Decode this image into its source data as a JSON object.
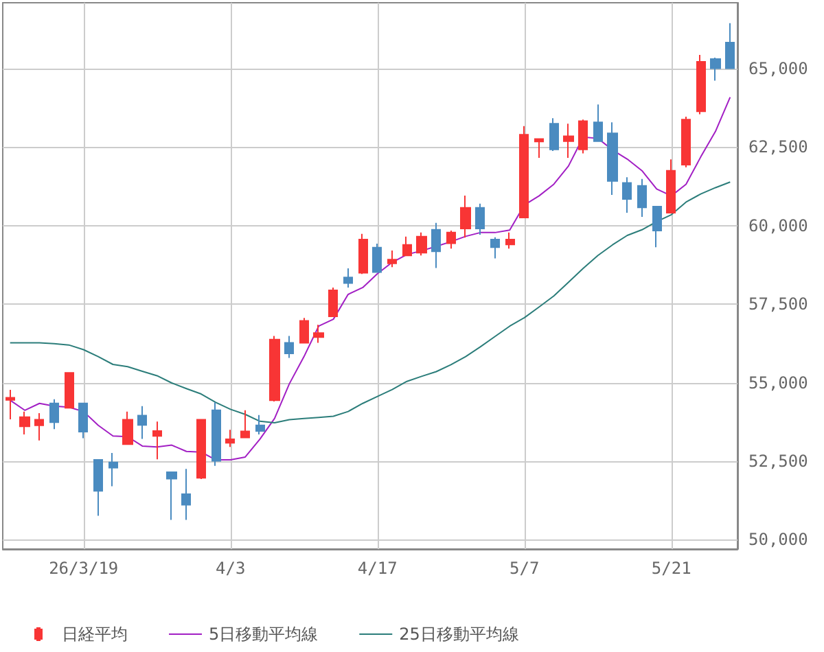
{
  "chart_data": {
    "type": "candlestick",
    "categories": [
      null,
      null,
      null,
      null,
      null,
      "26/3/19",
      null,
      null,
      null,
      null,
      null,
      null,
      null,
      null,
      null,
      "4/3",
      null,
      null,
      null,
      null,
      null,
      null,
      null,
      null,
      null,
      "4/17",
      null,
      null,
      null,
      null,
      null,
      null,
      null,
      null,
      null,
      "5/7",
      null,
      null,
      null,
      null,
      null,
      null,
      null,
      null,
      null,
      "5/21",
      null,
      null,
      null,
      null
    ],
    "series": [
      {
        "name": "日経平均",
        "colors": [
          "#f83535",
          "#f83535",
          "#f83535",
          "#4a8bc0",
          "#f83535",
          "#4a8bc0",
          "#4a8bc0",
          "#4a8bc0",
          "#f83535",
          "#4a8bc0",
          "#f83535",
          "#4a8bc0",
          "#4a8bc0",
          "#f83535",
          "#4a8bc0",
          "#f83535",
          "#f83535",
          "#4a8bc0",
          "#f83535",
          "#4a8bc0",
          "#f83535",
          "#f83535",
          "#f83535",
          "#4a8bc0",
          "#f83535",
          "#4a8bc0",
          "#f83535",
          "#f83535",
          "#f83535",
          "#4a8bc0",
          "#f83535",
          "#f83535",
          "#4a8bc0",
          "#4a8bc0",
          "#f83535",
          "#f83535",
          "#f83535",
          "#4a8bc0",
          "#f83535",
          "#f83535",
          "#4a8bc0",
          "#4a8bc0",
          "#4a8bc0",
          "#4a8bc0",
          "#4a8bc0",
          "#f83535",
          "#f83535",
          "#f83535",
          "#4a8bc0",
          "#4a8bc0"
        ],
        "ohlc": [
          [
            54450,
            54770,
            53830,
            54520
          ],
          [
            53610,
            54080,
            53350,
            53900
          ],
          [
            53640,
            54030,
            53160,
            53820
          ],
          [
            54340,
            54470,
            53520,
            53740
          ],
          [
            54200,
            55310,
            54200,
            55310
          ],
          [
            54340,
            54340,
            53230,
            53440
          ],
          [
            52540,
            52540,
            50760,
            51550
          ],
          [
            52460,
            52760,
            51700,
            52290
          ],
          [
            53040,
            54080,
            53040,
            53820
          ],
          [
            53950,
            54250,
            53210,
            53650
          ],
          [
            53300,
            53760,
            52560,
            53460
          ],
          [
            52150,
            52150,
            50630,
            51940
          ],
          [
            51450,
            52250,
            50630,
            51110
          ],
          [
            51970,
            53820,
            51930,
            53820
          ],
          [
            54120,
            54370,
            52350,
            52510
          ],
          [
            53080,
            53500,
            52950,
            53200
          ],
          [
            53250,
            54120,
            53250,
            53450
          ],
          [
            53640,
            53970,
            53350,
            53460
          ],
          [
            54440,
            56490,
            54400,
            56370
          ],
          [
            56270,
            56490,
            55790,
            55930
          ],
          [
            56270,
            57060,
            56270,
            56970
          ],
          [
            56450,
            56840,
            56270,
            56580
          ],
          [
            57110,
            58030,
            57110,
            57940
          ],
          [
            58350,
            58640,
            58030,
            58170
          ],
          [
            58500,
            59740,
            58460,
            59560
          ],
          [
            59300,
            59430,
            58520,
            58520
          ],
          [
            58800,
            59210,
            58680,
            58920
          ],
          [
            59050,
            59650,
            59050,
            59390
          ],
          [
            59140,
            59780,
            59050,
            59650
          ],
          [
            59870,
            60090,
            58650,
            59180
          ],
          [
            59440,
            59840,
            59270,
            59780
          ],
          [
            59910,
            60960,
            59620,
            60570
          ],
          [
            60570,
            60700,
            59710,
            59910
          ],
          [
            59560,
            59630,
            58960,
            59310
          ],
          [
            59400,
            59780,
            59270,
            59560
          ],
          [
            60260,
            63170,
            60260,
            62900
          ],
          [
            62680,
            62760,
            62160,
            62760
          ],
          [
            63250,
            63420,
            62380,
            62430
          ],
          [
            62690,
            63250,
            62160,
            62850
          ],
          [
            62430,
            63380,
            62300,
            63330
          ],
          [
            63290,
            63860,
            62690,
            62690
          ],
          [
            62940,
            63290,
            60980,
            61420
          ],
          [
            61360,
            61540,
            60410,
            60850
          ],
          [
            61270,
            61490,
            60280,
            60580
          ],
          [
            60610,
            60610,
            59310,
            59840
          ],
          [
            60410,
            62110,
            60410,
            61750
          ],
          [
            61940,
            63470,
            61860,
            63380
          ],
          [
            63640,
            65440,
            63550,
            65220
          ],
          [
            65310,
            65350,
            64620,
            65010
          ],
          [
            65830,
            66450,
            65010,
            65010
          ]
        ]
      },
      {
        "type": "line",
        "name": "5日移動平均線",
        "color": "#a21fc4",
        "values": [
          54440,
          54120,
          54340,
          54250,
          54220,
          54080,
          53640,
          53300,
          53280,
          52980,
          52950,
          53010,
          52810,
          52790,
          52540,
          52540,
          52630,
          53200,
          53860,
          54960,
          55830,
          56800,
          57020,
          57810,
          58030,
          58470,
          58830,
          59080,
          59200,
          59340,
          59490,
          59660,
          59780,
          59780,
          59860,
          60660,
          60950,
          61320,
          61900,
          62820,
          62780,
          62410,
          62120,
          61750,
          61170,
          60950,
          61320,
          62190,
          63000,
          64090
        ]
      },
      {
        "type": "line",
        "name": "25日移動平均線",
        "color": "#2b7d7a",
        "values": [
          56270,
          56270,
          56270,
          56240,
          56200,
          56050,
          55830,
          55580,
          55510,
          55360,
          55220,
          54990,
          54810,
          54640,
          54370,
          54150,
          53990,
          53770,
          53720,
          53820,
          53860,
          53890,
          53930,
          54080,
          54340,
          54560,
          54780,
          55040,
          55200,
          55350,
          55570,
          55830,
          56140,
          56470,
          56800,
          57070,
          57410,
          57760,
          58200,
          58640,
          59050,
          59390,
          59690,
          59870,
          60130,
          60350,
          60750,
          61010,
          61210,
          61390
        ]
      }
    ],
    "ylim": [
      49700,
      67100
    ],
    "yticks": [
      {
        "value": 50000,
        "label": "50,000"
      },
      {
        "value": 52500,
        "label": "52,500"
      },
      {
        "value": 55000,
        "label": "55,000"
      },
      {
        "value": 57500,
        "label": "57,500"
      },
      {
        "value": 60000,
        "label": "60,000"
      },
      {
        "value": 62500,
        "label": "62,500"
      },
      {
        "value": 65000,
        "label": "65,000"
      }
    ],
    "grid": true,
    "legend": "bottom left",
    "marker": "none"
  }
}
